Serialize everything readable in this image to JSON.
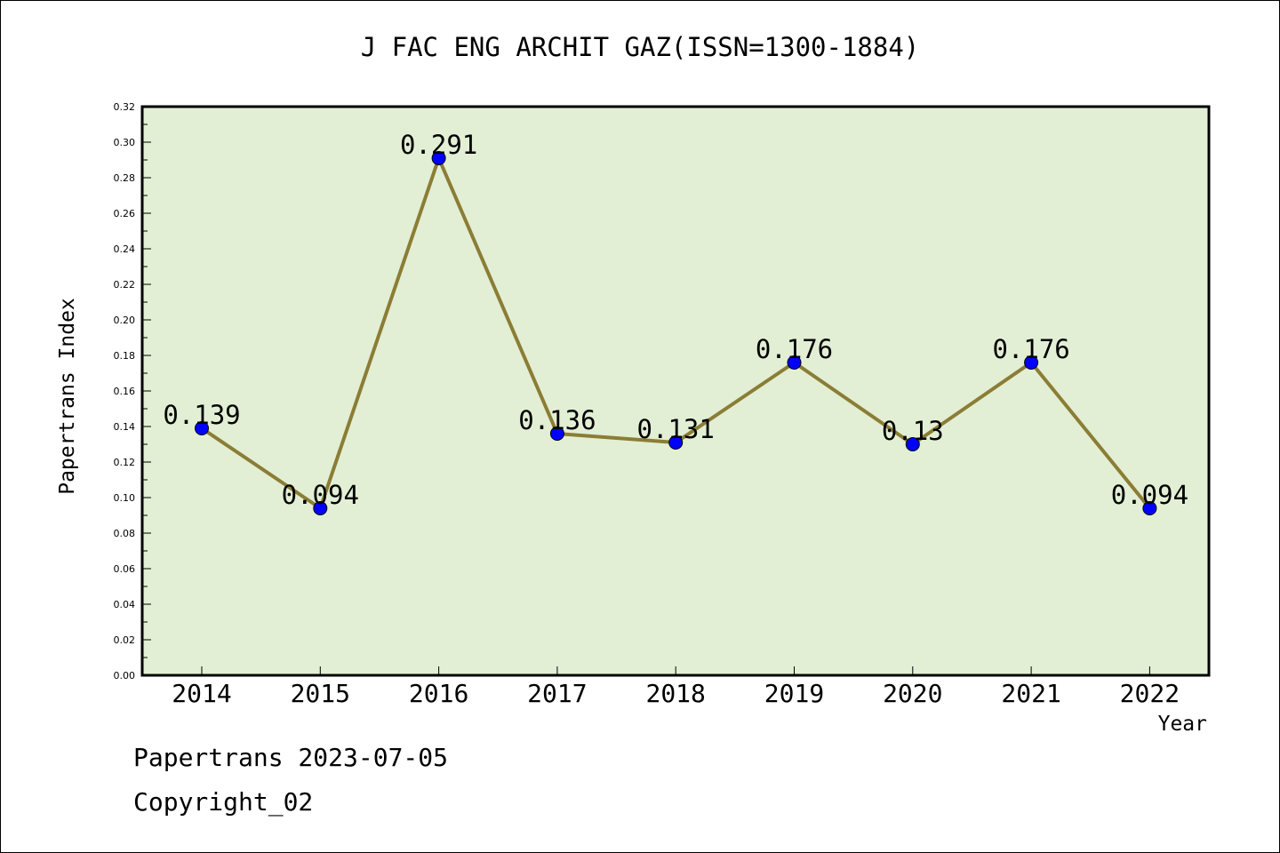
{
  "chart_data": {
    "type": "line",
    "title": "J FAC ENG ARCHIT GAZ(ISSN=1300-1884)",
    "xlabel": "Year",
    "ylabel": "Papertrans Index",
    "categories": [
      "2014",
      "2015",
      "2016",
      "2017",
      "2018",
      "2019",
      "2020",
      "2021",
      "2022"
    ],
    "series": [
      {
        "values": [
          0.139,
          0.094,
          0.291,
          0.136,
          0.131,
          0.176,
          0.13,
          0.176,
          0.094
        ]
      }
    ],
    "data_labels": [
      "0.139",
      "0.094",
      "0.291",
      "0.136",
      "0.131",
      "0.176",
      "0.13",
      "0.176",
      "0.094"
    ],
    "ylim": [
      0,
      0.32
    ],
    "y_ticks": [
      "0.00",
      "0.02",
      "0.04",
      "0.06",
      "0.08",
      "0.10",
      "0.12",
      "0.14",
      "0.16",
      "0.18",
      "0.20",
      "0.22",
      "0.24",
      "0.26",
      "0.28",
      "0.30",
      "0.32"
    ],
    "grid": false,
    "legend": "none",
    "colors": {
      "plot_background": "#e2efd5",
      "line": "#8b7d35",
      "marker": "#0000ff"
    }
  },
  "footer": {
    "line1": "Papertrans 2023-07-05",
    "line2": "Copyright_02"
  }
}
